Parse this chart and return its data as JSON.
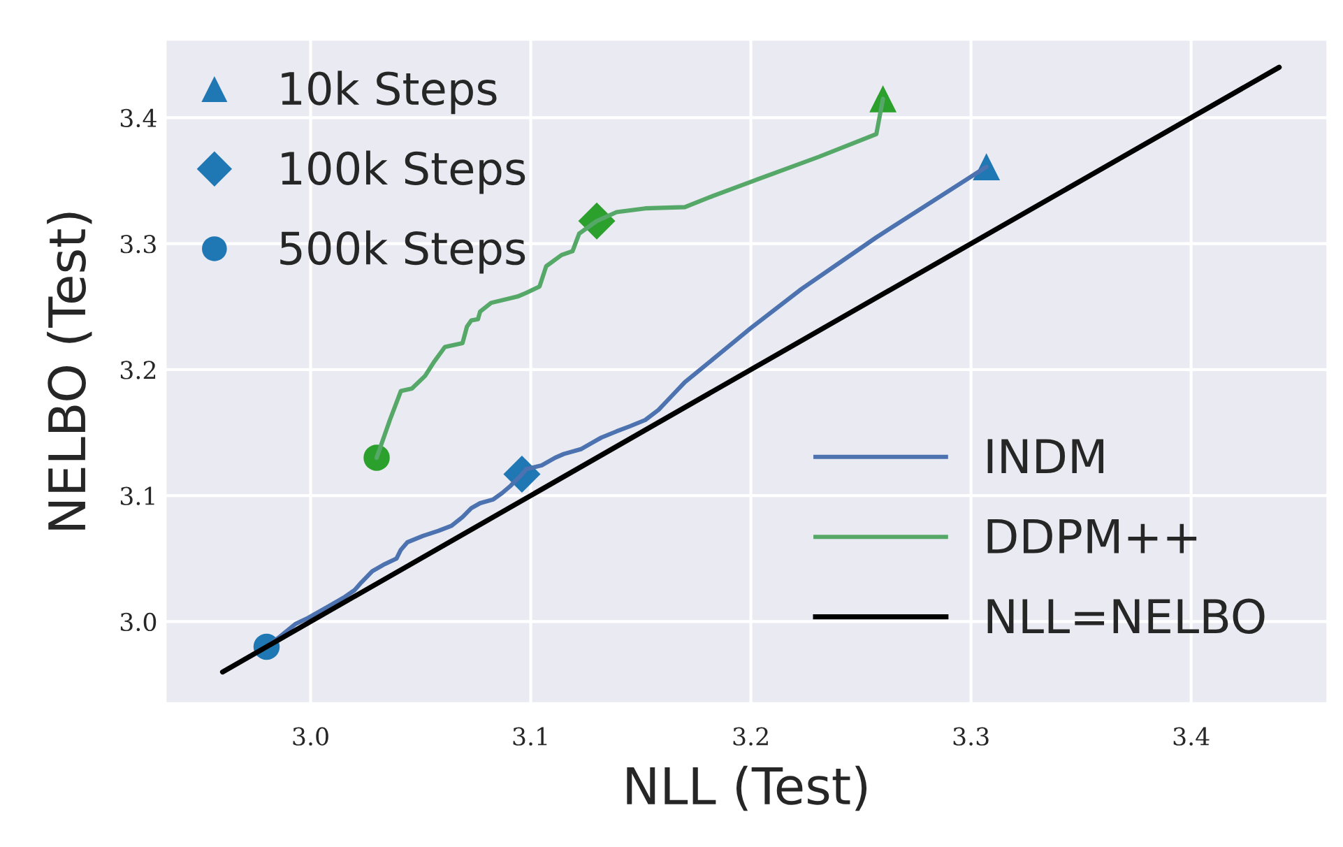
{
  "chart_data": {
    "type": "line",
    "xlabel": "NLL (Test)",
    "ylabel": "NELBO (Test)",
    "xlim": [
      2.934,
      3.462
    ],
    "ylim": [
      2.935,
      3.462
    ],
    "xticks": [
      {
        "value": 3.0,
        "label": "3.0"
      },
      3.1,
      3.2,
      3.3,
      3.4
    ],
    "yticks": [
      {
        "value": 3.0,
        "label": "3.0"
      },
      3.1,
      3.2,
      3.3,
      3.4
    ],
    "grid": true,
    "legend": [
      "top left",
      "bottom right"
    ],
    "series": [
      {
        "name": "10k Steps",
        "type": "scatter",
        "marker": "triangle",
        "color": "#1f77b4",
        "colors": [
          "#1f77b4",
          "#2ca02c"
        ],
        "x": [
          3.307,
          3.26
        ],
        "values": [
          3.361,
          3.415
        ]
      },
      {
        "name": "100k Steps",
        "type": "scatter",
        "marker": "diamond",
        "color": "#1f77b4",
        "colors": [
          "#1f77b4",
          "#2ca02c"
        ],
        "x": [
          3.096,
          3.13
        ],
        "values": [
          3.117,
          3.318
        ]
      },
      {
        "name": "500k Steps",
        "type": "scatter",
        "marker": "circle",
        "color": "#1f77b4",
        "colors": [
          "#1f77b4",
          "#2ca02c"
        ],
        "x": [
          2.98,
          3.03
        ],
        "values": [
          2.98,
          3.13
        ]
      },
      {
        "name": "INDM",
        "color": "#4c72b0",
        "x": [
          2.98,
          2.986,
          2.993,
          2.999,
          3.007,
          3.015,
          3.02,
          3.023,
          3.028,
          3.033,
          3.039,
          3.041,
          3.044,
          3.051,
          3.058,
          3.064,
          3.069,
          3.073,
          3.077,
          3.083,
          3.087,
          3.091,
          3.096,
          3.098,
          3.105,
          3.111,
          3.115,
          3.123,
          3.128,
          3.132,
          3.139,
          3.145,
          3.152,
          3.158,
          3.164,
          3.17,
          3.177,
          3.2,
          3.223,
          3.257,
          3.307
        ],
        "values": [
          2.98,
          2.988,
          2.998,
          3.003,
          3.011,
          3.019,
          3.025,
          3.031,
          3.04,
          3.045,
          3.05,
          3.057,
          3.063,
          3.068,
          3.072,
          3.076,
          3.083,
          3.09,
          3.094,
          3.097,
          3.102,
          3.108,
          3.117,
          3.121,
          3.124,
          3.13,
          3.133,
          3.137,
          3.142,
          3.146,
          3.151,
          3.155,
          3.16,
          3.168,
          3.179,
          3.19,
          3.2,
          3.233,
          3.264,
          3.305,
          3.361
        ]
      },
      {
        "name": "DDPM++",
        "color": "#55a868",
        "x": [
          3.03,
          3.032,
          3.036,
          3.041,
          3.046,
          3.052,
          3.056,
          3.061,
          3.069,
          3.071,
          3.073,
          3.076,
          3.077,
          3.082,
          3.094,
          3.098,
          3.104,
          3.107,
          3.114,
          3.119,
          3.122,
          3.13,
          3.139,
          3.152,
          3.17,
          3.183,
          3.203,
          3.231,
          3.257,
          3.26
        ],
        "values": [
          3.13,
          3.14,
          3.16,
          3.183,
          3.185,
          3.195,
          3.206,
          3.218,
          3.221,
          3.234,
          3.239,
          3.24,
          3.246,
          3.253,
          3.258,
          3.261,
          3.266,
          3.282,
          3.291,
          3.294,
          3.308,
          3.318,
          3.325,
          3.328,
          3.329,
          3.338,
          3.351,
          3.369,
          3.387,
          3.415
        ]
      },
      {
        "name": "NLL=NELBO",
        "color": "#000000",
        "x": [
          2.96,
          3.44
        ],
        "values": [
          2.96,
          3.44
        ]
      }
    ]
  }
}
